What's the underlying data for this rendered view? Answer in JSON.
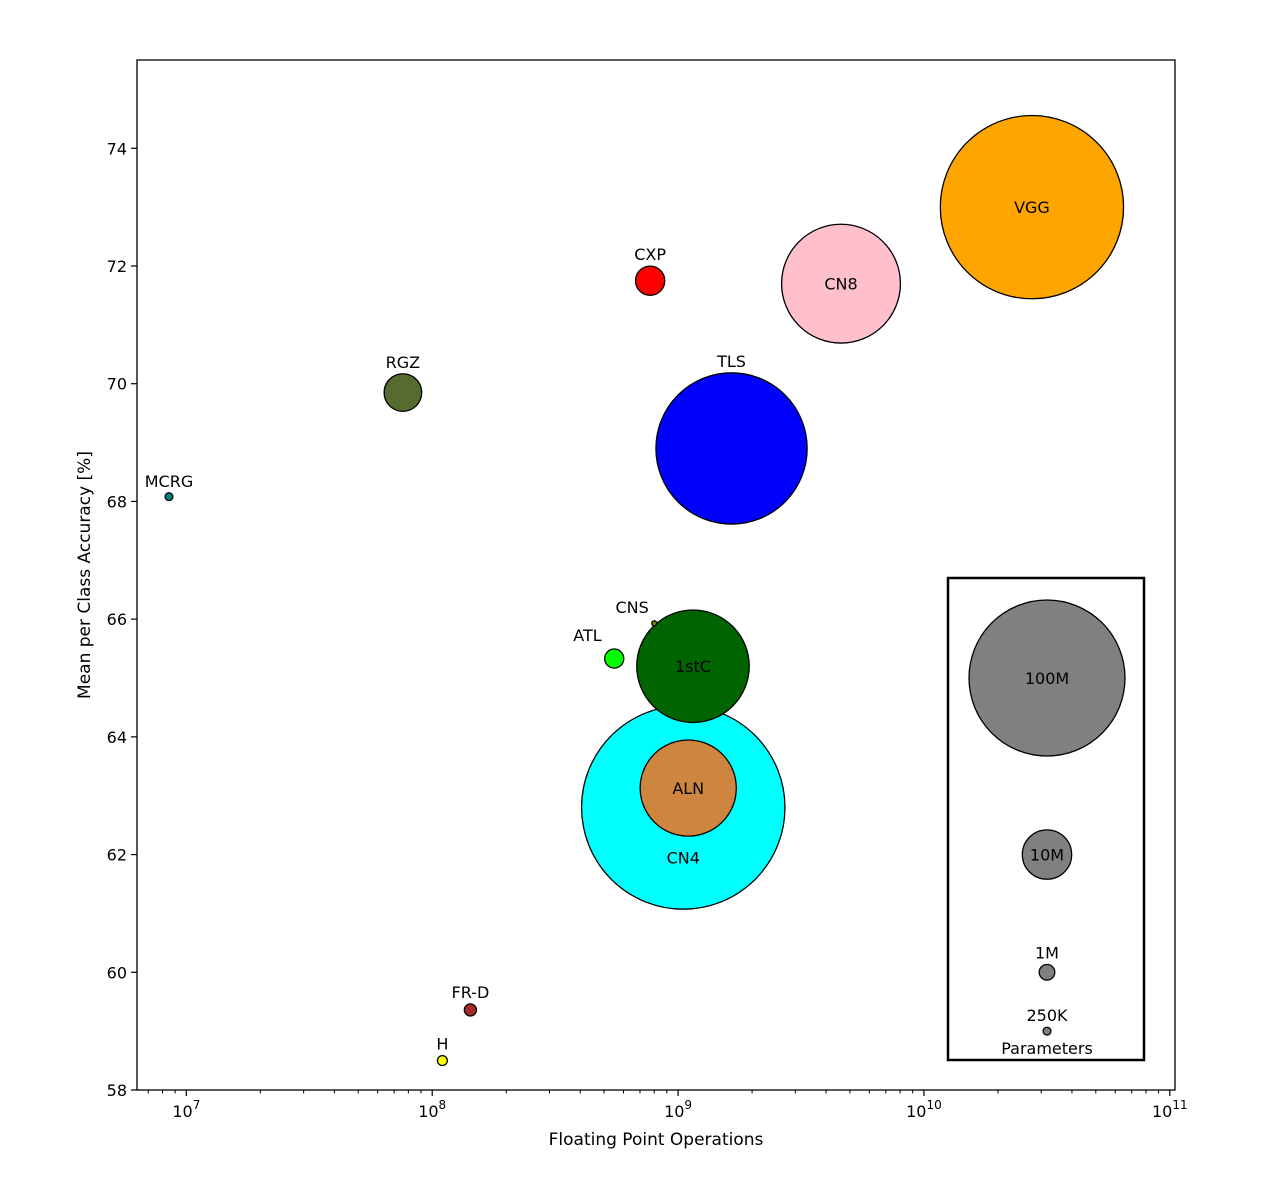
{
  "chart_data": {
    "type": "scatter",
    "title": "",
    "xlabel": "Floating Point Operations",
    "ylabel": "Mean per Class Accuracy [%]",
    "x_scale": "log",
    "xlim": [
      6300000,
      105000000000
    ],
    "ylim": [
      58,
      75.5
    ],
    "x_ticks": [
      {
        "value": 10000000,
        "base": "10",
        "exp": "7"
      },
      {
        "value": 100000000,
        "base": "10",
        "exp": "8"
      },
      {
        "value": 1000000000,
        "base": "10",
        "exp": "9"
      },
      {
        "value": 10000000000,
        "base": "10",
        "exp": "10"
      },
      {
        "value": 100000000000,
        "base": "10",
        "exp": "11"
      }
    ],
    "y_ticks": [
      {
        "value": 58,
        "label": "58"
      },
      {
        "value": 60,
        "label": "60"
      },
      {
        "value": 62,
        "label": "62"
      },
      {
        "value": 64,
        "label": "64"
      },
      {
        "value": 66,
        "label": "66"
      },
      {
        "value": 68,
        "label": "68"
      },
      {
        "value": 70,
        "label": "70"
      },
      {
        "value": 72,
        "label": "72"
      },
      {
        "value": 74,
        "label": "74"
      }
    ],
    "size_encoding": "Parameters",
    "points": [
      {
        "label": "VGG",
        "flops": 27500000000,
        "accuracy": 73.0,
        "params": 138000000,
        "color": "#ffa500",
        "label_pos": "inside"
      },
      {
        "label": "CN8",
        "flops": 4600000000,
        "accuracy": 71.7,
        "params": 58000000,
        "color": "#ffc0cb",
        "label_pos": "inside"
      },
      {
        "label": "CXP",
        "flops": 770000000,
        "accuracy": 71.75,
        "params": 3500000,
        "color": "#ff0000",
        "label_pos": "above"
      },
      {
        "label": "TLS",
        "flops": 1650000000,
        "accuracy": 68.9,
        "params": 94000000,
        "color": "#0000ff",
        "label_pos": "above"
      },
      {
        "label": "RGZ",
        "flops": 76000000,
        "accuracy": 69.85,
        "params": 5800000,
        "color": "#556b2f",
        "label_pos": "above"
      },
      {
        "label": "MCRG",
        "flops": 8500000,
        "accuracy": 68.08,
        "params": 250000,
        "color": "#008080",
        "label_pos": "above"
      },
      {
        "label": "1stC",
        "flops": 1150000000,
        "accuracy": 65.2,
        "params": 52000000,
        "color": "#006400",
        "label_pos": "inside"
      },
      {
        "label": "CNS",
        "flops": 800000000,
        "accuracy": 65.93,
        "params": 40000,
        "color": "#7f7f00",
        "label_pos": "above-left"
      },
      {
        "label": "ATL",
        "flops": 550000000,
        "accuracy": 65.33,
        "params": 1500000,
        "color": "#00ff00",
        "label_pos": "above-left"
      },
      {
        "label": "CN4",
        "flops": 1050000000,
        "accuracy": 62.8,
        "params": 170000000,
        "color": "#00ffff",
        "label_pos": "below-inside"
      },
      {
        "label": "ALN",
        "flops": 1100000000,
        "accuracy": 63.13,
        "params": 38000000,
        "color": "#cd853f",
        "label_pos": "inside"
      },
      {
        "label": "FR-D",
        "flops": 143000000,
        "accuracy": 59.36,
        "params": 600000,
        "color": "#a52a2a",
        "label_pos": "above"
      },
      {
        "label": "H",
        "flops": 110000000,
        "accuracy": 58.5,
        "params": 400000,
        "color": "#ffff00",
        "label_pos": "above"
      }
    ],
    "legend": {
      "title": "Parameters",
      "placement": "bottom-right",
      "color": "#808080",
      "entries": [
        {
          "label": "100M",
          "params": 100000000,
          "accuracy": 65.0,
          "label_pos": "inside"
        },
        {
          "label": "10M",
          "params": 10000000,
          "accuracy": 62.0,
          "label_pos": "inside"
        },
        {
          "label": "1M",
          "params": 1000000,
          "accuracy": 60.0,
          "label_pos": "above"
        },
        {
          "label": "250K",
          "params": 250000,
          "accuracy": 59.0,
          "label_pos": "above"
        }
      ]
    }
  }
}
